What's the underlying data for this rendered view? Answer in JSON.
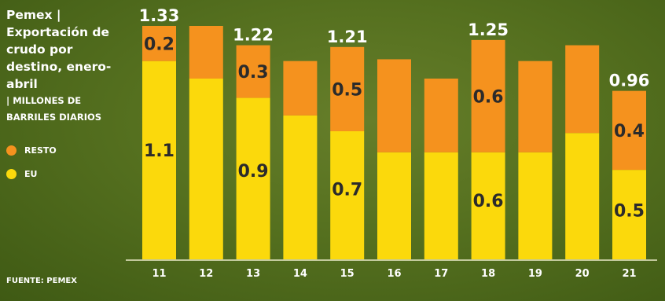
{
  "sidebar": {
    "title": "Pemex | Exportación de crudo por destino, enero-abril",
    "subtitle": "| MILLONES DE BARRILES DIARIOS"
  },
  "legend": [
    {
      "label": "RESTO",
      "color": "#f5921e"
    },
    {
      "label": "EU",
      "color": "#fbd90c"
    }
  ],
  "source": "FUENTE: PEMEX",
  "chart_data": {
    "type": "bar",
    "stacked": true,
    "categories": [
      "11",
      "12",
      "13",
      "14",
      "15",
      "16",
      "17",
      "18",
      "19",
      "20",
      "21"
    ],
    "series": [
      {
        "name": "EU",
        "color": "#fbd90c",
        "values": [
          1.13,
          1.03,
          0.92,
          0.82,
          0.73,
          0.61,
          0.61,
          0.61,
          0.61,
          0.72,
          0.51
        ]
      },
      {
        "name": "RESTO",
        "color": "#f5921e",
        "values": [
          0.2,
          0.3,
          0.3,
          0.31,
          0.48,
          0.53,
          0.42,
          0.64,
          0.52,
          0.5,
          0.45
        ]
      }
    ],
    "series_labels": {
      "EU": [
        "1.1",
        "",
        "0.9",
        "",
        "0.7",
        "",
        "",
        "0.6",
        "",
        "",
        "0.5"
      ],
      "RESTO": [
        "0.2",
        "",
        "0.3",
        "",
        "0.5",
        "",
        "",
        "0.6",
        "",
        "",
        "0.4"
      ]
    },
    "totals_labels": [
      "1.33",
      "",
      "1.22",
      "",
      "1.21",
      "",
      "",
      "1.25",
      "",
      "",
      "0.96"
    ],
    "ylim": [
      0,
      1.33
    ]
  }
}
